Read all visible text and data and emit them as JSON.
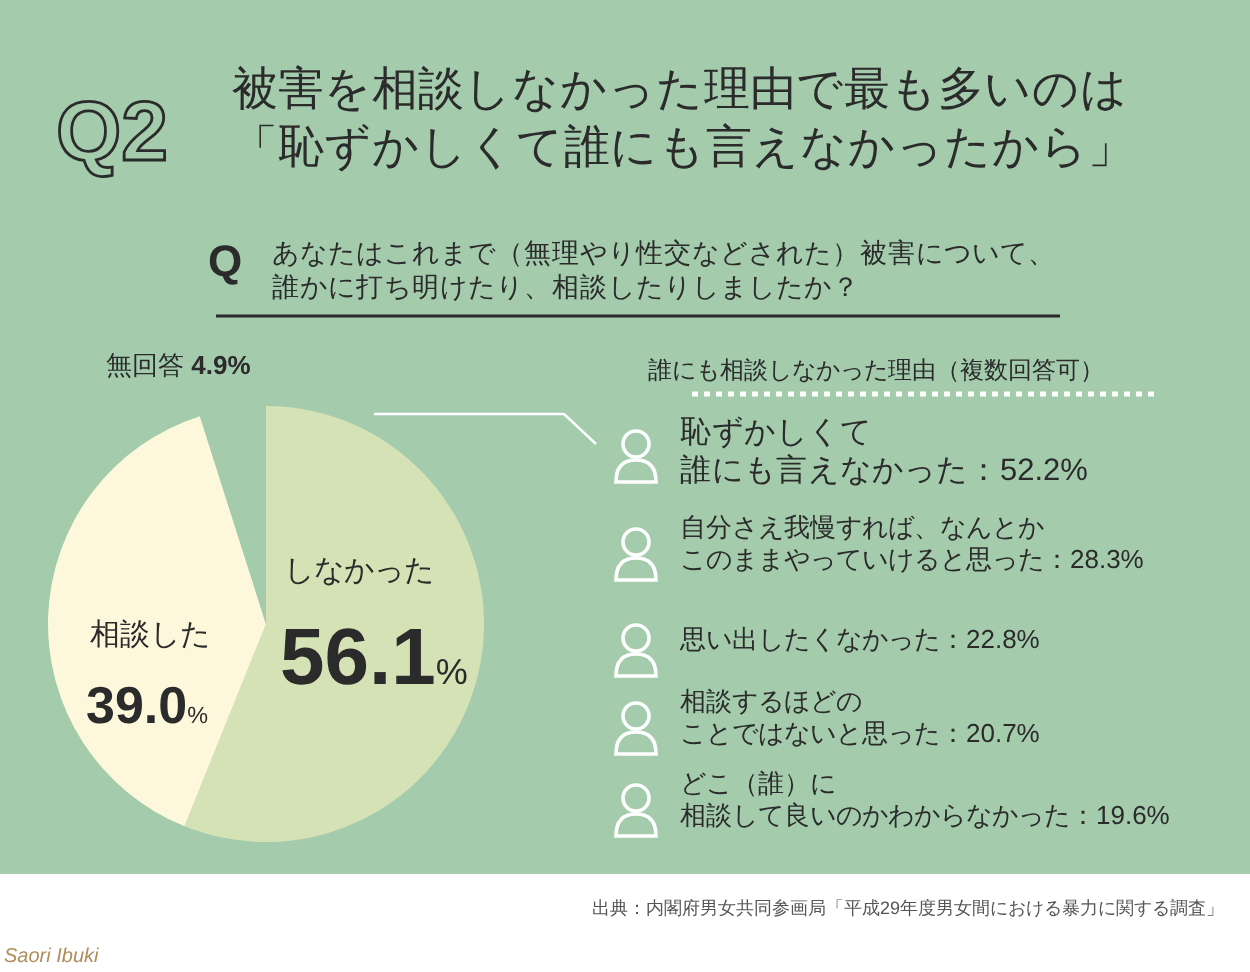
{
  "chart_data": [
    {
      "type": "pie",
      "title": "被害を相談しなかった理由で最も多いのは「恥ずかしくて誰にも言えなかったから」",
      "categories": [
        "しなかった",
        "相談した",
        "無回答"
      ],
      "values": [
        56.1,
        39.0,
        4.9
      ],
      "value_labels": [
        "56.1%",
        "39.0%",
        "4.9%"
      ],
      "colors": [
        "#d5e2b5",
        "#fdf8dc",
        "#a3cbac"
      ],
      "annotations": [
        "Q2",
        "Q",
        "あなたはこれまで（無理やり性交などされた）被害について、誰かに打ち明けたり、相談したりしましたか？",
        "出典：内閣府男女共同参画局「平成29年度男女間における暴力に関する調査」",
        "Saori Ibuki"
      ]
    },
    {
      "type": "other",
      "title": "誰にも相談しなかった理由（複数回答可）",
      "annotations": [
        "恥ずかしくて誰にも言えなかった：52.2%",
        "自分さえ我慢すれば、なんとかこのままやっていけると思った：28.3%",
        "思い出したくなかった：22.8%",
        "相談するほどのことではないと思った：20.7%",
        "どこ（誰）に相談して良いのかわからなかった：19.6%"
      ]
    }
  ]
}
